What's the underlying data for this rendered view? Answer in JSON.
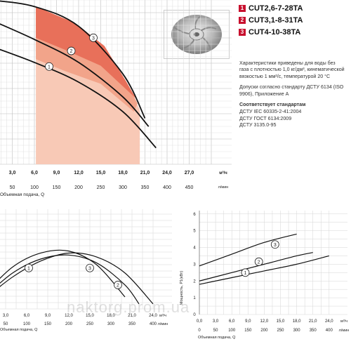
{
  "legend": [
    {
      "num": "1",
      "model": "CUT2,6-7-28TA"
    },
    {
      "num": "2",
      "model": "CUT3,1-8-31TA"
    },
    {
      "num": "3",
      "model": "CUT4-10-38TA"
    }
  ],
  "impeller": {
    "icon": "impeller-icon"
  },
  "notes": {
    "characteristics": "Характеристики приведены для воды без газа с плотностью 1,0 кг/дм³, кинематической вязкостью 1 мм²/с, температурой 20 °С",
    "tolerances": "Допуски согласно стандарту ДСТУ 6134 (ISO 9906), Приложение А",
    "standards_title": "Соответствует стандартам",
    "standards": [
      "ДСТУ IEC 60335-2-41:2004",
      "ДСТУ ГОСТ 6134:2009",
      "ДСТУ 3135.0-95"
    ]
  },
  "watermark": "naktorg.prom.ua",
  "colors": {
    "accent": "#c8102e",
    "zone_dark": "#e8705a",
    "zone_mid": "#f2a48a",
    "zone_light": "#f8c9b6"
  },
  "chart_data": [
    {
      "type": "line",
      "name": "head-curve",
      "xlabel": "Объемная подача, Q",
      "x_ticks_m3h": [
        "3,0",
        "6,0",
        "9,0",
        "12,0",
        "15,0",
        "18,0",
        "21,0",
        "24,0",
        "27,0"
      ],
      "x_unit_m3h": "м³/ч",
      "x_ticks_lmin": [
        "50",
        "100",
        "150",
        "200",
        "250",
        "300",
        "350",
        "400",
        "450"
      ],
      "x_unit_lmin": "л/мин",
      "xlim": [
        0,
        30
      ],
      "series": [
        {
          "label": "1",
          "x": [
            0,
            6,
            12,
            18,
            22.5
          ],
          "y": [
            0.72,
            0.62,
            0.5,
            0.32,
            0.1
          ]
        },
        {
          "label": "2",
          "x": [
            0,
            6,
            12,
            18,
            21.5
          ],
          "y": [
            0.88,
            0.76,
            0.62,
            0.41,
            0.23
          ]
        },
        {
          "label": "3",
          "x": [
            0,
            6,
            12,
            18,
            21
          ],
          "y": [
            1.0,
            0.96,
            0.84,
            0.55,
            0.28
          ]
        }
      ]
    },
    {
      "type": "line",
      "name": "efficiency-curve",
      "xlabel": "Объемная подача, Q",
      "x_ticks_m3h": [
        "3,0",
        "6,0",
        "9,0",
        "12,0",
        "15,0",
        "18,0",
        "21,0",
        "24,0"
      ],
      "x_unit_m3h": "м³/ч",
      "x_ticks_lmin": [
        "50",
        "100",
        "150",
        "200",
        "250",
        "300",
        "350",
        "400"
      ],
      "x_unit_lmin": "л/мин",
      "xlim": [
        0,
        25
      ],
      "series": [
        {
          "label": "1",
          "x": [
            0,
            4,
            8,
            12,
            16,
            20,
            24
          ],
          "y": [
            0.1,
            0.32,
            0.48,
            0.56,
            0.52,
            0.36,
            0.05
          ]
        },
        {
          "label": "2",
          "x": [
            0,
            4,
            8,
            12,
            16,
            20,
            22
          ],
          "y": [
            0.12,
            0.36,
            0.5,
            0.54,
            0.46,
            0.24,
            0.05
          ]
        },
        {
          "label": "3",
          "x": [
            0,
            4,
            8,
            12,
            16,
            20
          ],
          "y": [
            0.15,
            0.42,
            0.56,
            0.58,
            0.44,
            0.12
          ]
        }
      ]
    },
    {
      "type": "line",
      "name": "power-curve",
      "ylabel": "Мощность, P1(кВт)",
      "xlabel": "Объемная подача, Q",
      "y_ticks": [
        "0",
        "1",
        "2",
        "3",
        "4",
        "5",
        "6"
      ],
      "ylim": [
        0,
        6.2
      ],
      "x_ticks_m3h": [
        "0,0",
        "3,0",
        "6,0",
        "9,0",
        "12,0",
        "15,0",
        "18,0",
        "21,0",
        "24,0"
      ],
      "x_unit_m3h": "м³/ч",
      "x_ticks_lmin": [
        "0",
        "50",
        "100",
        "150",
        "200",
        "250",
        "300",
        "350",
        "400"
      ],
      "x_unit_lmin": "л/мин",
      "xlim": [
        0,
        25
      ],
      "series": [
        {
          "label": "1",
          "x": [
            0,
            6,
            12,
            18,
            24
          ],
          "y": [
            1.8,
            2.2,
            2.6,
            3.0,
            3.5
          ]
        },
        {
          "label": "2",
          "x": [
            0,
            6,
            12,
            18,
            21
          ],
          "y": [
            2.0,
            2.5,
            3.0,
            3.5,
            3.7
          ]
        },
        {
          "label": "3",
          "x": [
            0,
            6,
            12,
            18
          ],
          "y": [
            2.9,
            3.6,
            4.3,
            4.8
          ]
        }
      ]
    }
  ]
}
